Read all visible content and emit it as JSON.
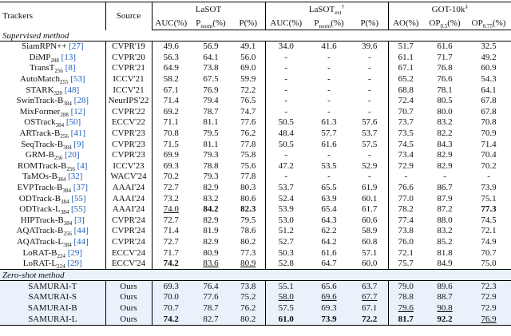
{
  "header": {
    "trackers": "Trackers",
    "source": "Source",
    "groups": [
      {
        "name": "LaSOT"
      },
      {
        "name": "LaSOT",
        "sub": "ext",
        "sup": "†"
      },
      {
        "name": "GOT-10k",
        "sup": "‡"
      }
    ],
    "columns": [
      {
        "text": "AUC(%)"
      },
      {
        "text": "P",
        "sub": "norm",
        "after": "(%)"
      },
      {
        "text": "P(%)"
      },
      {
        "text": "AUC(%)"
      },
      {
        "text": "P",
        "sub": "norm",
        "after": "(%)"
      },
      {
        "text": "P(%)"
      },
      {
        "text": "AO(%)"
      },
      {
        "text": "OP",
        "sub": "0.5",
        "after": "(%)"
      },
      {
        "text": "OP",
        "sub": "0.75",
        "after": "(%)"
      }
    ]
  },
  "sections": [
    {
      "title": "Supervised method",
      "rows": [
        {
          "tracker": "SiamRPN++",
          "cite": "[27]",
          "source": "CVPR'19",
          "values": [
            "49.6",
            "56.9",
            "49.1",
            "34.0",
            "41.6",
            "39.6",
            "51.7",
            "61.6",
            "32.5"
          ]
        },
        {
          "tracker": "DiMP",
          "sub": "288",
          "cite": "[13]",
          "source": "CVPR'20",
          "values": [
            "56.3",
            "64.1",
            "56.0",
            "-",
            "-",
            "-",
            "61.1",
            "71.7",
            "49.2"
          ]
        },
        {
          "tracker": "TransT",
          "sub": "256",
          "cite": "[8]",
          "source": "CVPR'21",
          "values": [
            "64.9",
            "73.8",
            "69.0",
            "-",
            "-",
            "-",
            "67.1",
            "76.8",
            "60.9"
          ]
        },
        {
          "tracker": "AutoMatch",
          "sub": "255",
          "cite": "[53]",
          "source": "ICCV'21",
          "values": [
            "58.2",
            "67.5",
            "59.9",
            "-",
            "-",
            "-",
            "65.2",
            "76.6",
            "54.3"
          ]
        },
        {
          "tracker": "STARK",
          "sub": "320",
          "cite": "[48]",
          "source": "ICCV'21",
          "values": [
            "67.1",
            "76.9",
            "72.2",
            "-",
            "-",
            "-",
            "68.8",
            "78.1",
            "64.1"
          ]
        },
        {
          "tracker": "SwinTrack-B",
          "sub": "384",
          "cite": "[28]",
          "source": "NeurIPS'22",
          "values": [
            "71.4",
            "79.4",
            "76.5",
            "-",
            "-",
            "-",
            "72.4",
            "80.5",
            "67.8"
          ]
        },
        {
          "tracker": "MixFormer",
          "sub": "288",
          "cite": "[12]",
          "source": "CVPR'22",
          "values": [
            "69.2",
            "78.7",
            "74.7",
            "-",
            "-",
            "-",
            "70.7",
            "80.0",
            "67.8"
          ]
        },
        {
          "tracker": "OSTrack",
          "sub": "384",
          "cite": "[50]",
          "source": "ECCV'22",
          "values": [
            "71.1",
            "81.1",
            "77.6",
            "50.5",
            "61.3",
            "57.6",
            "73.7",
            "83.2",
            "70.8"
          ]
        },
        {
          "tracker": "ARTrack-B",
          "sub": "256",
          "cite": "[41]",
          "source": "CVPR'23",
          "values": [
            "70.8",
            "79.5",
            "76.2",
            "48.4",
            "57.7",
            "53.7",
            "73.5",
            "82.2",
            "70.9"
          ]
        },
        {
          "tracker": "SeqTrack-B",
          "sub": "384",
          "cite": "[9]",
          "source": "CVPR'23",
          "values": [
            "71.5",
            "81.1",
            "77.8",
            "50.5",
            "61.6",
            "57.5",
            "74.5",
            "84.3",
            "71.4"
          ]
        },
        {
          "tracker": "GRM-B",
          "sub": "256",
          "cite": "[20]",
          "source": "CVPR'23",
          "values": [
            "69.9",
            "79.3",
            "75.8",
            "-",
            "-",
            "-",
            "73.4",
            "82.9",
            "70.4"
          ]
        },
        {
          "tracker": "ROMTrack-B",
          "sub": "256",
          "cite": "[4]",
          "source": "ICCV'23",
          "values": [
            "69.3",
            "78.8",
            "75.6",
            "47.2",
            "53.5",
            "52.9",
            "72.9",
            "82.9",
            "70.2"
          ]
        },
        {
          "tracker": "TaMOs-B",
          "sub": "384",
          "cite": "[32]",
          "source": "WACV'24",
          "values": [
            "70.2",
            "79.3",
            "77.8",
            "-",
            "-",
            "-",
            "-",
            "-",
            "-"
          ]
        },
        {
          "tracker": "EVPTrack-B",
          "sub": "384",
          "cite": "[37]",
          "source": "AAAI'24",
          "values": [
            "72.7",
            "82.9",
            "80.3",
            "53.7",
            "65.5",
            "61.9",
            "76.6",
            "86.7",
            "73.9"
          ]
        },
        {
          "tracker": "ODTrack-B",
          "sub": "384",
          "cite": "[55]",
          "source": "AAAI'24",
          "values": [
            "73.2",
            "83.2",
            "80.6",
            "52.4",
            "63.9",
            "60.1",
            "77.0",
            "87.9",
            "75.1"
          ]
        },
        {
          "tracker": "ODTrack-L",
          "sub": "384",
          "cite": "[55]",
          "source": "AAAI'24",
          "values": [
            "74.0",
            "84.2",
            "82.3",
            "53.9",
            "65.4",
            "61.7",
            "78.2",
            "87.2",
            "77.3"
          ],
          "bold": [
            1,
            2,
            8
          ],
          "underline": [
            0
          ]
        },
        {
          "tracker": "HIPTrack-B",
          "sub": "384",
          "cite": "[3]",
          "source": "CVPR'24",
          "values": [
            "72.7",
            "82.9",
            "79.5",
            "53.0",
            "64.3",
            "60.6",
            "77.4",
            "88.0",
            "74.5"
          ]
        },
        {
          "tracker": "AQATrack-B",
          "sub": "256",
          "cite": "[44]",
          "source": "CVPR'24",
          "values": [
            "71.4",
            "81.9",
            "78.6",
            "51.2",
            "62.2",
            "58.9",
            "73.8",
            "83.2",
            "72.1"
          ]
        },
        {
          "tracker": "AQATrack-L",
          "sub": "384",
          "cite": "[44]",
          "source": "CVPR'24",
          "values": [
            "72.7",
            "82.9",
            "80.2",
            "52.7",
            "64.2",
            "60.8",
            "76.0",
            "85.2",
            "74.9"
          ]
        },
        {
          "tracker": "LoRAT-B",
          "sub": "224",
          "cite": "[29]",
          "source": "ECCV'24",
          "values": [
            "71.7",
            "80.9",
            "77.3",
            "50.3",
            "61.6",
            "57.1",
            "72.1",
            "81.8",
            "70.7"
          ]
        },
        {
          "tracker": "LoRAT-L",
          "sub": "224",
          "cite": "[29]",
          "source": "ECCV'24",
          "values": [
            "74.2",
            "83.6",
            "80.9",
            "52.8",
            "64.7",
            "60.0",
            "75.7",
            "84.9",
            "75.0"
          ],
          "bold": [
            0
          ],
          "underline": [
            1,
            2
          ]
        }
      ]
    },
    {
      "title": "Zero-shot method",
      "shaded": true,
      "rows": [
        {
          "tracker": "SAMURAI-T",
          "source": "Ours",
          "values": [
            "69.3",
            "76.4",
            "73.8",
            "55.1",
            "65.6",
            "63.7",
            "79.0",
            "89.6",
            "72.3"
          ]
        },
        {
          "tracker": "SAMURAI-S",
          "source": "Ours",
          "values": [
            "70.0",
            "77.6",
            "75.2",
            "58.0",
            "69.6",
            "67.7",
            "78.8",
            "88.7",
            "72.9"
          ],
          "underline": [
            3,
            4,
            5
          ]
        },
        {
          "tracker": "SAMURAI-B",
          "source": "Ours",
          "values": [
            "70.7",
            "78.7",
            "76.2",
            "57.5",
            "69.3",
            "67.1",
            "79.6",
            "90.8",
            "72.9"
          ],
          "underline": [
            6,
            7
          ]
        },
        {
          "tracker": "SAMURAI-L",
          "source": "Ours",
          "values": [
            "74.2",
            "82.7",
            "80.2",
            "61.0",
            "73.9",
            "72.2",
            "81.7",
            "92.2",
            "76.9"
          ],
          "bold": [
            0,
            3,
            4,
            5,
            6,
            7
          ],
          "underline": [
            8
          ]
        }
      ]
    }
  ]
}
